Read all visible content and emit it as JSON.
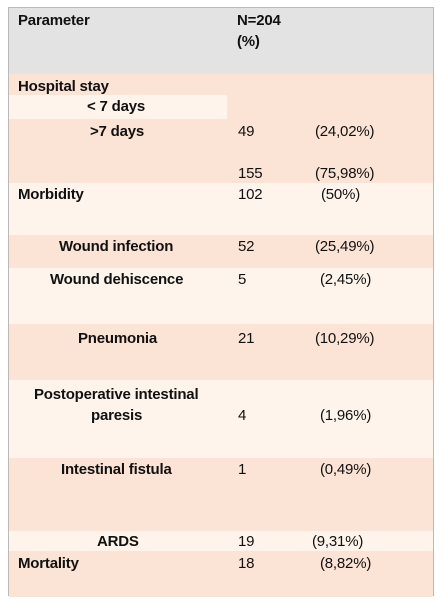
{
  "header": {
    "parameter": "Parameter",
    "n_line1": "N=204",
    "n_line2": "(%)"
  },
  "rows": [
    {
      "label": "Hospital stay"
    },
    {
      "label": "< 7 days"
    },
    {
      "label": ">7 days",
      "n": "49",
      "pct": "(24,02%)"
    },
    {
      "n": "155",
      "pct": "(75,98%)"
    },
    {
      "label": "Morbidity",
      "n": "102",
      "pct": "(50%)"
    },
    {
      "label": "Wound infection",
      "n": "52",
      "pct": "(25,49%)"
    },
    {
      "label": "Wound dehiscence",
      "n": "5",
      "pct": "(2,45%)"
    },
    {
      "label": "Pneumonia",
      "n": "21",
      "pct": "(10,29%)"
    },
    {
      "label_line1": "Postoperative intestinal",
      "label_line2": "paresis",
      "n": "4",
      "pct": "(1,96%)"
    },
    {
      "label": "Intestinal fistula",
      "n": "1",
      "pct": "(0,49%)"
    },
    {
      "label": "ARDS",
      "n": "19",
      "pct": "(9,31%)"
    },
    {
      "label": "Mortality",
      "n": "18",
      "pct": "(8,82%)"
    }
  ]
}
